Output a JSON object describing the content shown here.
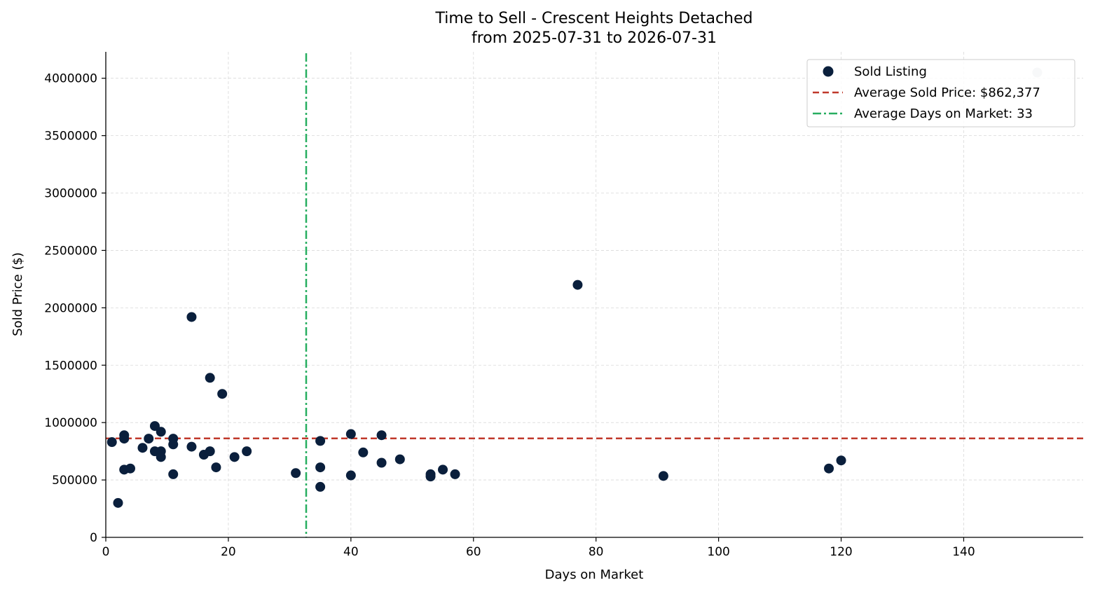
{
  "chart_data": {
    "type": "scatter",
    "title": "Time to Sell - Crescent Heights Detached",
    "subtitle": "from 2025-07-31 to 2026-07-31",
    "xlabel": "Days on Market",
    "ylabel": "Sold Price ($)",
    "xlim": [
      0,
      159.5
    ],
    "ylim": [
      0,
      4230000
    ],
    "xticks": [
      0,
      20,
      40,
      60,
      80,
      100,
      120,
      140
    ],
    "yticks": [
      0,
      500000,
      1000000,
      1500000,
      2000000,
      2500000,
      3000000,
      3500000,
      4000000
    ],
    "grid": true,
    "legend_position": "top-right",
    "colors": {
      "points": "#0a1f3c",
      "avg_price_line": "#c0392b",
      "avg_days_line": "#27ae60",
      "faded_point": "#c6ced8",
      "grid": "#d9d9d9"
    },
    "series": [
      {
        "name": "Sold Listing",
        "points": [
          {
            "x": 1,
            "y": 830000
          },
          {
            "x": 2,
            "y": 300000
          },
          {
            "x": 3,
            "y": 890000
          },
          {
            "x": 3,
            "y": 860000
          },
          {
            "x": 3,
            "y": 590000
          },
          {
            "x": 4,
            "y": 600000
          },
          {
            "x": 6,
            "y": 780000
          },
          {
            "x": 7,
            "y": 860000
          },
          {
            "x": 8,
            "y": 970000
          },
          {
            "x": 8,
            "y": 750000
          },
          {
            "x": 9,
            "y": 920000
          },
          {
            "x": 9,
            "y": 750000
          },
          {
            "x": 9,
            "y": 700000
          },
          {
            "x": 11,
            "y": 860000
          },
          {
            "x": 11,
            "y": 810000
          },
          {
            "x": 11,
            "y": 550000
          },
          {
            "x": 14,
            "y": 1920000
          },
          {
            "x": 14,
            "y": 790000
          },
          {
            "x": 16,
            "y": 720000
          },
          {
            "x": 17,
            "y": 1390000
          },
          {
            "x": 17,
            "y": 750000
          },
          {
            "x": 18,
            "y": 610000
          },
          {
            "x": 19,
            "y": 1250000
          },
          {
            "x": 21,
            "y": 700000
          },
          {
            "x": 23,
            "y": 750000
          },
          {
            "x": 31,
            "y": 560000
          },
          {
            "x": 35,
            "y": 840000
          },
          {
            "x": 35,
            "y": 610000
          },
          {
            "x": 35,
            "y": 440000
          },
          {
            "x": 40,
            "y": 900000
          },
          {
            "x": 40,
            "y": 540000
          },
          {
            "x": 42,
            "y": 740000
          },
          {
            "x": 45,
            "y": 890000
          },
          {
            "x": 45,
            "y": 650000
          },
          {
            "x": 48,
            "y": 680000
          },
          {
            "x": 53,
            "y": 550000
          },
          {
            "x": 53,
            "y": 530000
          },
          {
            "x": 55,
            "y": 590000
          },
          {
            "x": 57,
            "y": 550000
          },
          {
            "x": 77,
            "y": 2200000
          },
          {
            "x": 91,
            "y": 535000
          },
          {
            "x": 118,
            "y": 600000
          },
          {
            "x": 120,
            "y": 670000
          }
        ]
      }
    ],
    "faded_points": [
      {
        "x": 152,
        "y": 4050000
      }
    ],
    "reference_lines": {
      "avg_price": {
        "label": "Average Sold Price: $862,377",
        "value": 862377
      },
      "avg_days": {
        "label": "Average Days on Market: 33",
        "value": 32.7
      }
    }
  }
}
